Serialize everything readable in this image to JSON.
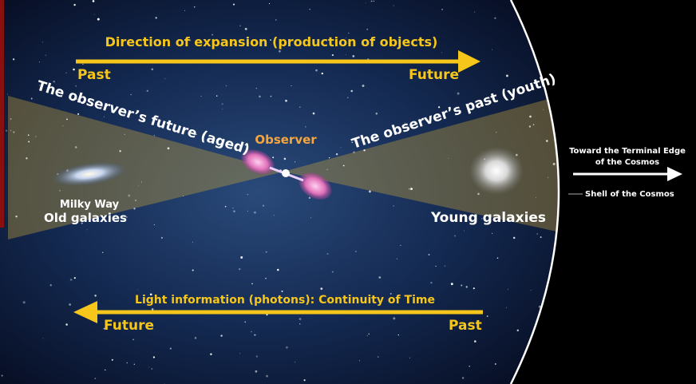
{
  "top_arrow": {
    "label": "Direction of expansion (production of objects)",
    "start": "Past",
    "end": "Future"
  },
  "cone": {
    "left_label": "The observer’s future (aged)",
    "center_label": "Observer",
    "right_label": "The observer’s past (youth)"
  },
  "left_galaxy": {
    "name": "Milky Way",
    "label": "Old galaxies"
  },
  "right_galaxy": {
    "label": "Young galaxies"
  },
  "edge": {
    "direction": [
      "Toward the Terminal Edge",
      "of the Cosmos"
    ],
    "shell": "Shell of the Cosmos"
  },
  "bottom_arrow": {
    "label": "Light information (photons): Continuity of Time",
    "start": "Past",
    "end": "Future"
  }
}
